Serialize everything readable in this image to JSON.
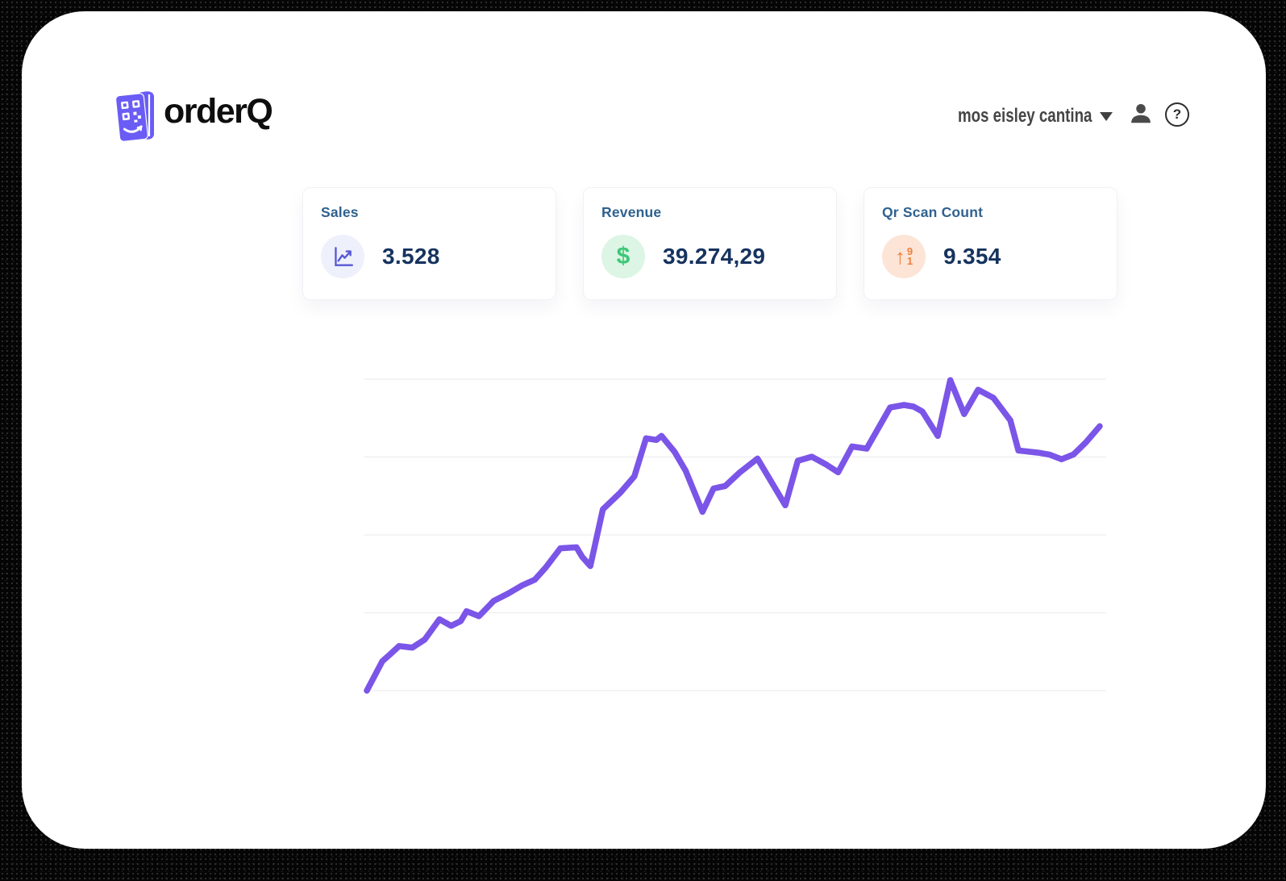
{
  "brand": {
    "name": "orderQ"
  },
  "header": {
    "account_label": "mos eisley cantina",
    "help_glyph": "?"
  },
  "stat_cards": [
    {
      "label": "Sales",
      "value": "3.528",
      "icon": "trend-line-icon",
      "icon_color": "#5859d4",
      "icon_bg": "#eef0fb"
    },
    {
      "label": "Revenue",
      "value": "39.274,29",
      "icon": "dollar-icon",
      "icon_glyph": "$",
      "icon_color": "#3ec877",
      "icon_bg": "#dcf5e5"
    },
    {
      "label": "Qr Scan Count",
      "value": "9.354",
      "icon": "sort-numeric-up-icon",
      "icon_glyph": "↑",
      "icon_digit_top": "9",
      "icon_digit_bottom": "1",
      "icon_color": "#ee7e3b",
      "icon_bg": "#fce5d7"
    }
  ],
  "chart_data": {
    "type": "line",
    "title": "",
    "xlabel": "",
    "ylabel": "",
    "legend": "none",
    "grid": "horizontal",
    "gridline_count": 5,
    "line_color": "#7b55e8",
    "grid_color": "#ededf0",
    "x_range": [
      0,
      100
    ],
    "y_range": [
      0,
      100
    ],
    "points": [
      [
        0,
        0
      ],
      [
        2.1,
        9.4
      ],
      [
        3.2,
        11.7
      ],
      [
        4.4,
        14.3
      ],
      [
        6.2,
        13.8
      ],
      [
        7.9,
        16.4
      ],
      [
        9.9,
        22.9
      ],
      [
        11.5,
        20.8
      ],
      [
        12.8,
        22.3
      ],
      [
        13.6,
        25.5
      ],
      [
        15.3,
        23.9
      ],
      [
        17.3,
        28.8
      ],
      [
        19.3,
        31.2
      ],
      [
        21.2,
        33.8
      ],
      [
        22.9,
        35.6
      ],
      [
        24.4,
        39.5
      ],
      [
        26.4,
        45.7
      ],
      [
        28.6,
        46.0
      ],
      [
        29.4,
        42.9
      ],
      [
        30.5,
        40.0
      ],
      [
        32.2,
        58.2
      ],
      [
        34.6,
        63.6
      ],
      [
        36.5,
        68.8
      ],
      [
        38.1,
        81.0
      ],
      [
        39.5,
        80.5
      ],
      [
        40.2,
        81.8
      ],
      [
        42.0,
        76.6
      ],
      [
        43.5,
        70.6
      ],
      [
        45.8,
        57.4
      ],
      [
        47.3,
        64.9
      ],
      [
        48.9,
        65.7
      ],
      [
        50.9,
        70.1
      ],
      [
        53.3,
        74.5
      ],
      [
        57.1,
        59.5
      ],
      [
        58.8,
        73.8
      ],
      [
        60.7,
        75.1
      ],
      [
        62.6,
        72.7
      ],
      [
        64.3,
        70.1
      ],
      [
        66.2,
        78.4
      ],
      [
        68.2,
        77.7
      ],
      [
        71.4,
        90.9
      ],
      [
        73.3,
        91.7
      ],
      [
        74.6,
        91.2
      ],
      [
        75.8,
        89.6
      ],
      [
        77.9,
        81.8
      ],
      [
        79.6,
        99.7
      ],
      [
        81.5,
        88.8
      ],
      [
        83.4,
        96.6
      ],
      [
        85.5,
        94.0
      ],
      [
        87.8,
        86.8
      ],
      [
        88.9,
        77.1
      ],
      [
        91.6,
        76.4
      ],
      [
        93.1,
        75.8
      ],
      [
        94.8,
        74.3
      ],
      [
        96.4,
        75.8
      ],
      [
        98.1,
        79.7
      ],
      [
        100,
        84.9
      ]
    ]
  },
  "colors": {
    "label_blue": "#2f618f",
    "value_navy": "#16335f",
    "brand_purple": "#6a5cf5",
    "header_gray": "#454545"
  }
}
